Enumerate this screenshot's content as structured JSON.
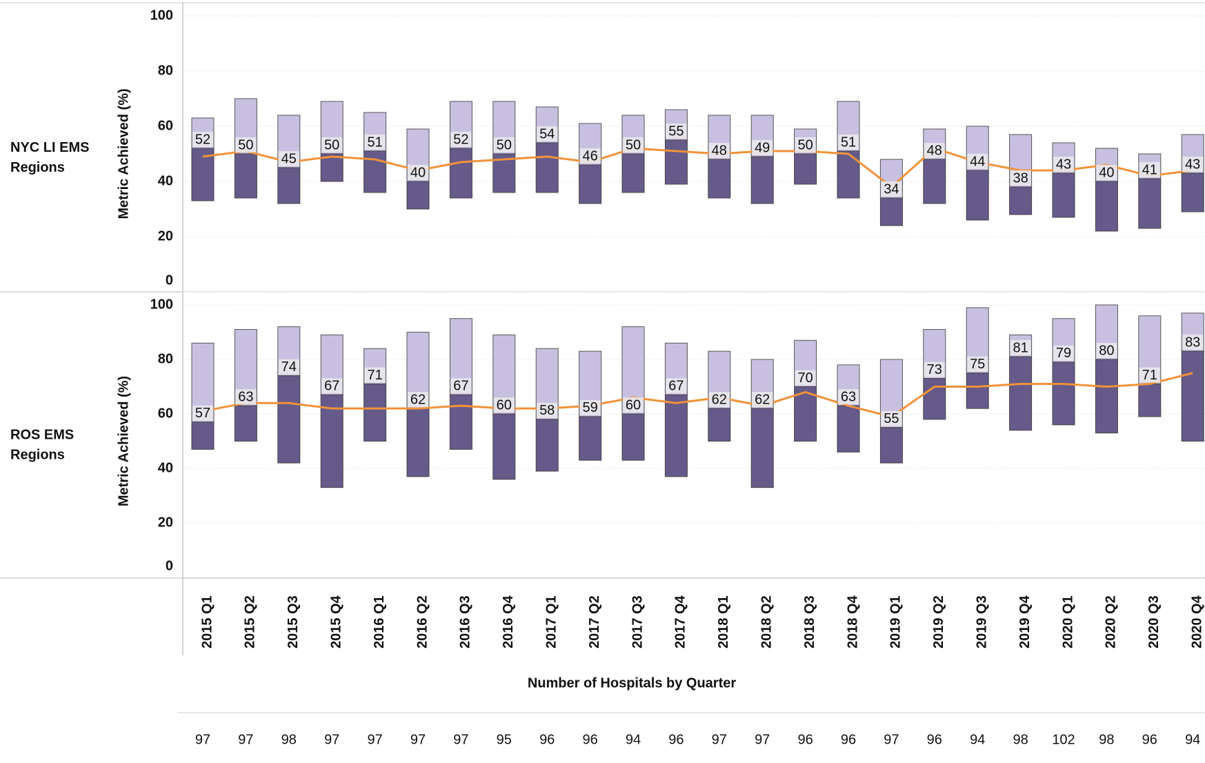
{
  "chart_data": [
    {
      "type": "floating-bar",
      "row_label": [
        "NYC LI EMS",
        "Regions"
      ],
      "ylabel": "Metric Achieved (%)",
      "ylim": [
        0,
        100
      ],
      "yticks": [
        0,
        20,
        40,
        60,
        80,
        100
      ],
      "grid": true,
      "series": [
        {
          "values": [
            33,
            34,
            32,
            40,
            36,
            30,
            34,
            36,
            36,
            32,
            36,
            39,
            34,
            32,
            39,
            34,
            24,
            32,
            26,
            28,
            27,
            22,
            23,
            29
          ]
        },
        {
          "color": "#655a8a",
          "values": [
            52,
            50,
            45,
            50,
            51,
            40,
            52,
            50,
            54,
            46,
            50,
            55,
            48,
            49,
            50,
            51,
            34,
            48,
            44,
            38,
            43,
            40,
            41,
            43
          ]
        },
        {
          "color": "#c8c0e0",
          "values": [
            63,
            70,
            64,
            69,
            65,
            59,
            69,
            69,
            67,
            61,
            64,
            66,
            64,
            64,
            59,
            69,
            48,
            59,
            60,
            57,
            54,
            52,
            50,
            57
          ]
        },
        {
          "color": "#f0923a",
          "values": [
            49,
            51,
            47,
            49,
            48,
            44,
            47,
            48,
            49,
            47,
            52,
            51,
            50,
            51,
            51,
            50,
            38,
            52,
            47,
            44,
            44,
            46,
            42,
            44
          ]
        }
      ]
    },
    {
      "type": "floating-bar",
      "row_label": [
        "ROS EMS",
        "Regions"
      ],
      "ylabel": "Metric Achieved (%)",
      "ylim": [
        0,
        100
      ],
      "yticks": [
        0,
        20,
        40,
        60,
        80,
        100
      ],
      "grid": true,
      "categories": [
        "2015 Q1",
        "2015 Q2",
        "2015 Q3",
        "2015 Q4",
        "2016 Q1",
        "2016 Q2",
        "2016 Q3",
        "2016 Q4",
        "2017 Q1",
        "2017 Q2",
        "2017 Q3",
        "2017 Q4",
        "2018 Q1",
        "2018 Q2",
        "2018 Q3",
        "2018 Q4",
        "2019 Q1",
        "2019 Q2",
        "2019 Q3",
        "2019 Q4",
        "2020 Q1",
        "2020 Q2",
        "2020 Q3",
        "2020 Q4"
      ],
      "series": [
        {
          "values": [
            47,
            50,
            42,
            33,
            50,
            37,
            47,
            36,
            39,
            43,
            43,
            37,
            50,
            33,
            50,
            46,
            42,
            58,
            62,
            54,
            56,
            53,
            59,
            50
          ]
        },
        {
          "color": "#655a8a",
          "values": [
            57,
            63,
            74,
            67,
            71,
            62,
            67,
            60,
            58,
            59,
            60,
            67,
            62,
            62,
            70,
            63,
            55,
            73,
            75,
            81,
            79,
            80,
            71,
            83
          ]
        },
        {
          "color": "#c8c0e0",
          "values": [
            86,
            91,
            92,
            89,
            84,
            90,
            95,
            89,
            84,
            83,
            92,
            86,
            83,
            80,
            87,
            78,
            80,
            91,
            99,
            89,
            95,
            100,
            96,
            97
          ]
        },
        {
          "color": "#f0923a",
          "values": [
            61,
            64,
            64,
            62,
            62,
            62,
            63,
            62,
            62,
            63,
            66,
            64,
            66,
            63,
            68,
            63,
            59,
            70,
            70,
            71,
            71,
            70,
            71,
            75
          ]
        }
      ]
    }
  ],
  "hospitals": {
    "title": "Number of Hospitals by Quarter",
    "values": [
      97,
      97,
      98,
      97,
      97,
      97,
      97,
      95,
      96,
      96,
      94,
      96,
      97,
      97,
      96,
      96,
      97,
      96,
      94,
      98,
      102,
      98,
      96,
      94
    ]
  }
}
